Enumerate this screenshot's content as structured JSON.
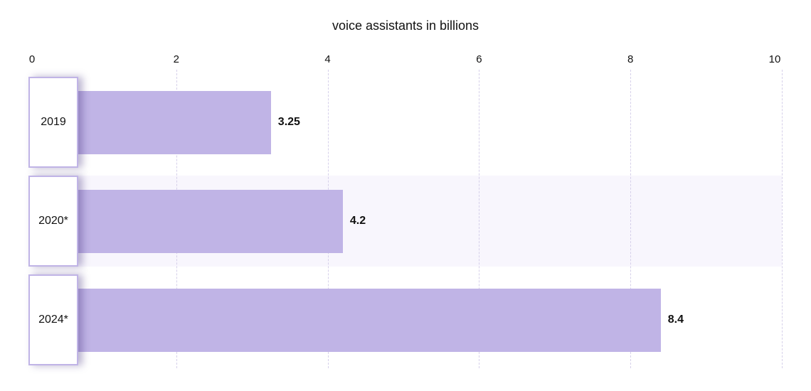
{
  "chart_data": {
    "type": "bar",
    "orientation": "horizontal",
    "title": "voice assistants in billions",
    "categories": [
      "2019",
      "2020*",
      "2024*"
    ],
    "values": [
      3.25,
      4.2,
      8.4
    ],
    "value_labels": [
      "3.25",
      "4.2",
      "8.4"
    ],
    "xlim": [
      0,
      10
    ],
    "xticks": [
      "0",
      "2",
      "4",
      "6",
      "8",
      "10"
    ],
    "grid": "vertical dashed",
    "highlighted_category": "2020*",
    "colors": {
      "bar": "#c0b4e6",
      "box_border": "#c0b4e6",
      "highlight_row": "#f8f6fd",
      "grid": "#d6d0ea"
    }
  }
}
